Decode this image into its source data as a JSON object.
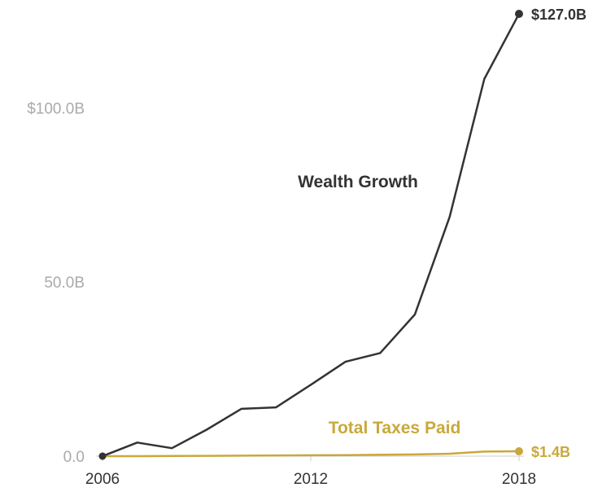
{
  "chart_data": {
    "type": "line",
    "x": [
      2006,
      2007,
      2008,
      2009,
      2010,
      2011,
      2012,
      2013,
      2014,
      2015,
      2016,
      2017,
      2018
    ],
    "series": [
      {
        "name": "Wealth Growth",
        "color": "#333333",
        "values": [
          0.0,
          3.9,
          2.3,
          7.6,
          13.6,
          14.0,
          20.5,
          27.1,
          29.6,
          40.7,
          68.7,
          108.3,
          127.0
        ],
        "end_label": "$127.0B"
      },
      {
        "name": "Total Taxes Paid",
        "color": "#c9a83c",
        "values": [
          0.0,
          0.0,
          0.05,
          0.1,
          0.15,
          0.2,
          0.25,
          0.3,
          0.4,
          0.5,
          0.7,
          1.3,
          1.4
        ],
        "end_label": "$1.4B"
      }
    ],
    "y_ticks": [
      {
        "value": 0,
        "label": "0.0"
      },
      {
        "value": 50,
        "label": "50.0B"
      },
      {
        "value": 100,
        "label": "$100.0B"
      }
    ],
    "x_ticks": [
      {
        "value": 2006,
        "label": "2006"
      },
      {
        "value": 2012,
        "label": "2012"
      },
      {
        "value": 2018,
        "label": "2018"
      }
    ],
    "xlim": [
      2006,
      2018
    ],
    "ylim": [
      0,
      127
    ],
    "grid": false
  }
}
